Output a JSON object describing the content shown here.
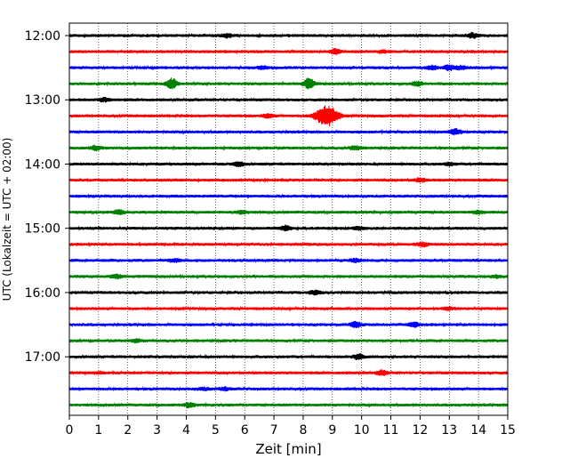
{
  "chart_data": {
    "type": "line",
    "title": "",
    "xlabel": "Zeit  [min]",
    "ylabel": "UTC (Lokalzeit = UTC + 02:00)",
    "xlim": [
      0,
      15
    ],
    "x_ticks": [
      0,
      1,
      2,
      3,
      4,
      5,
      6,
      7,
      8,
      9,
      10,
      11,
      12,
      13,
      14,
      15
    ],
    "grid_x": true,
    "trace_interval_min": 15,
    "y_tick_labels": [
      "12:00",
      "13:00",
      "14:00",
      "15:00",
      "16:00",
      "17:00"
    ],
    "trace_colors": [
      "#000000",
      "#ff0000",
      "#0000ff",
      "#008000"
    ],
    "traces": [
      {
        "start": "12:00",
        "color": "#000000",
        "events": [
          [
            5.4,
            0.3
          ],
          [
            13.8,
            0.45
          ]
        ]
      },
      {
        "start": "12:15",
        "color": "#ff0000",
        "events": [
          [
            9.1,
            0.4
          ],
          [
            10.7,
            0.2
          ]
        ]
      },
      {
        "start": "12:30",
        "color": "#0000ff",
        "events": [
          [
            6.6,
            0.25
          ],
          [
            12.4,
            0.35
          ],
          [
            13.0,
            0.45
          ],
          [
            13.4,
            0.3
          ]
        ]
      },
      {
        "start": "12:45",
        "color": "#008000",
        "events": [
          [
            3.5,
            0.9
          ],
          [
            8.2,
            0.9
          ],
          [
            11.9,
            0.4
          ]
        ]
      },
      {
        "start": "13:00",
        "color": "#000000",
        "events": [
          [
            1.2,
            0.3
          ]
        ]
      },
      {
        "start": "13:15",
        "color": "#ff0000",
        "events": [
          [
            8.8,
            1.9
          ],
          [
            6.8,
            0.3
          ]
        ]
      },
      {
        "start": "13:30",
        "color": "#0000ff",
        "events": [
          [
            13.2,
            0.5
          ]
        ]
      },
      {
        "start": "13:45",
        "color": "#008000",
        "events": [
          [
            0.9,
            0.35
          ],
          [
            9.8,
            0.35
          ]
        ]
      },
      {
        "start": "14:00",
        "color": "#000000",
        "events": [
          [
            5.8,
            0.45
          ],
          [
            13.0,
            0.25
          ]
        ]
      },
      {
        "start": "14:15",
        "color": "#ff0000",
        "events": [
          [
            12.0,
            0.35
          ]
        ]
      },
      {
        "start": "14:30",
        "color": "#0000ff",
        "events": []
      },
      {
        "start": "14:45",
        "color": "#008000",
        "events": [
          [
            1.7,
            0.4
          ],
          [
            5.9,
            0.3
          ],
          [
            14.0,
            0.25
          ]
        ]
      },
      {
        "start": "15:00",
        "color": "#000000",
        "events": [
          [
            7.4,
            0.4
          ],
          [
            9.9,
            0.25
          ]
        ]
      },
      {
        "start": "15:15",
        "color": "#ff0000",
        "events": [
          [
            12.1,
            0.35
          ]
        ]
      },
      {
        "start": "15:30",
        "color": "#0000ff",
        "events": [
          [
            3.6,
            0.25
          ],
          [
            9.8,
            0.3
          ]
        ]
      },
      {
        "start": "15:45",
        "color": "#008000",
        "events": [
          [
            1.6,
            0.4
          ],
          [
            14.6,
            0.2
          ]
        ]
      },
      {
        "start": "16:00",
        "color": "#000000",
        "events": [
          [
            8.4,
            0.35
          ]
        ]
      },
      {
        "start": "16:15",
        "color": "#ff0000",
        "events": [
          [
            13.0,
            0.2
          ]
        ]
      },
      {
        "start": "16:30",
        "color": "#0000ff",
        "events": [
          [
            9.8,
            0.5
          ],
          [
            11.8,
            0.4
          ]
        ]
      },
      {
        "start": "16:45",
        "color": "#008000",
        "events": [
          [
            2.3,
            0.25
          ]
        ]
      },
      {
        "start": "17:00",
        "color": "#000000",
        "events": [
          [
            9.9,
            0.45
          ]
        ]
      },
      {
        "start": "17:15",
        "color": "#ff0000",
        "events": [
          [
            10.7,
            0.4
          ],
          [
            1.0,
            0.2
          ]
        ]
      },
      {
        "start": "17:30",
        "color": "#0000ff",
        "events": [
          [
            5.3,
            0.25
          ],
          [
            4.6,
            0.2
          ]
        ]
      },
      {
        "start": "17:45",
        "color": "#008000",
        "events": [
          [
            4.1,
            0.35
          ]
        ]
      }
    ]
  }
}
